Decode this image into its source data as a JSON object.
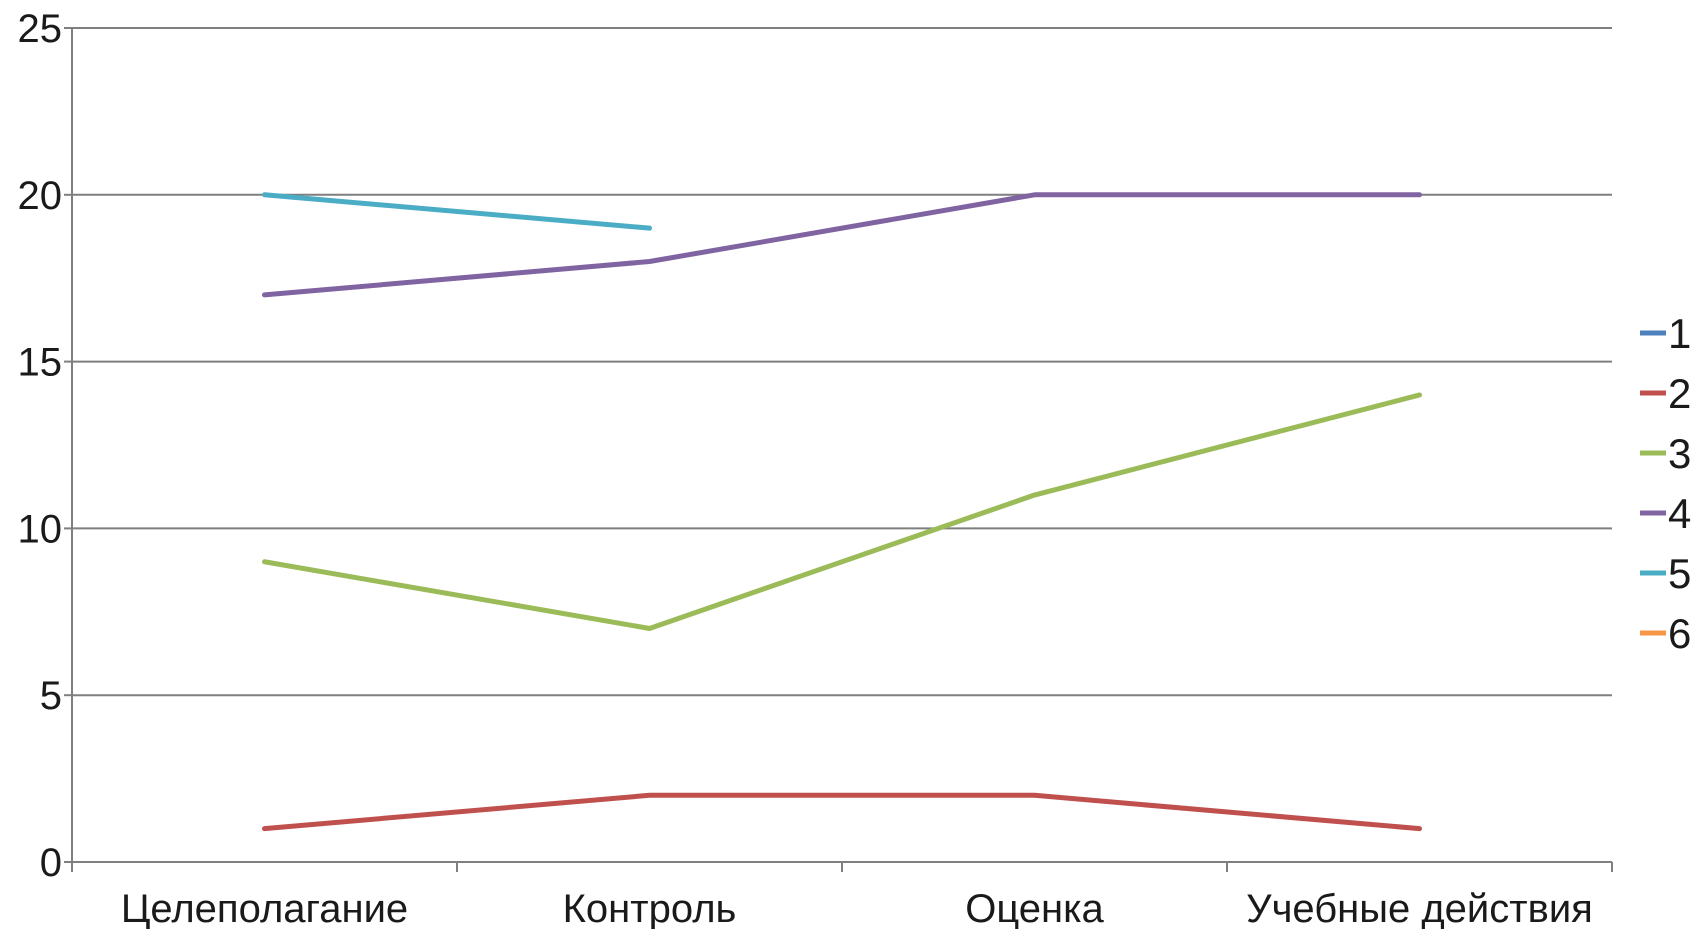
{
  "chart_data": {
    "type": "line",
    "title": "",
    "xlabel": "",
    "ylabel": "",
    "categories": [
      "Целеполагание",
      "Контроль",
      "Оценка",
      "Учебные действия"
    ],
    "ylim": [
      0,
      25
    ],
    "yticks": [
      0,
      5,
      10,
      15,
      20,
      25
    ],
    "grid": true,
    "legend_position": "right",
    "series": [
      {
        "name": "1",
        "color": "#4f81bd",
        "values": [
          null,
          null,
          null,
          null
        ]
      },
      {
        "name": "2",
        "color": "#c0504d",
        "values": [
          1,
          2,
          2,
          1
        ]
      },
      {
        "name": "3",
        "color": "#9bbb59",
        "values": [
          9,
          7,
          11,
          14
        ]
      },
      {
        "name": "4",
        "color": "#8064a2",
        "values": [
          17,
          18,
          20,
          20
        ]
      },
      {
        "name": "5",
        "color": "#4bacc6",
        "values": [
          20,
          19,
          null,
          null
        ]
      },
      {
        "name": "6",
        "color": "#f79646",
        "values": [
          null,
          null,
          null,
          null
        ]
      }
    ]
  }
}
